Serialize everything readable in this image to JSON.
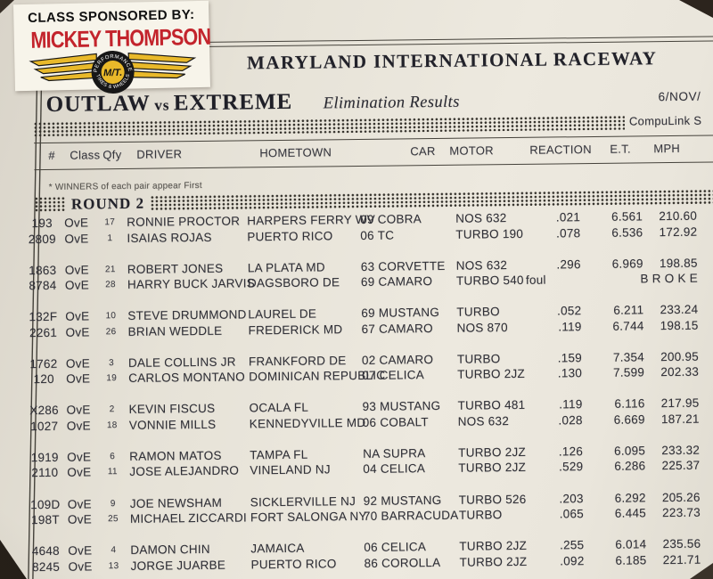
{
  "sticker": {
    "heading": "CLASS SPONSORED BY:",
    "brand": "MICKEY THOMPSON",
    "logo_center": "M/T.",
    "logo_arc_top": "PERFORMANCE",
    "logo_arc_bottom": "TIRES & WHEELS"
  },
  "masthead": {
    "track": "MARYLAND INTERNATIONAL RACEWAY",
    "class_left": "OUTLAW",
    "class_vs": "vs",
    "class_right": "EXTREME",
    "subtitle": "Elimination Results",
    "date": "6/NOV/",
    "timing_system": "CompuLink S"
  },
  "table": {
    "columns": [
      "#",
      "Class",
      "Qfy",
      "DRIVER",
      "HOMETOWN",
      "CAR",
      "MOTOR",
      "REACTION",
      "E.T.",
      "MPH"
    ],
    "winners_note": "* WINNERS of each pair appear First",
    "round_label": "ROUND 2",
    "pairs": [
      [
        {
          "num": "193",
          "cls": "OvE",
          "qty": "17",
          "driver": "RONNIE PROCTOR",
          "hometown": "HARPERS FERRY WV",
          "car": "09 COBRA",
          "motor": "NOS 632",
          "reaction": ".021",
          "et": "6.561",
          "mph": "210.60"
        },
        {
          "num": "2809",
          "cls": "OvE",
          "qty": "1",
          "driver": "ISAIAS ROJAS",
          "hometown": "PUERTO RICO",
          "car": "06 TC",
          "motor": "TURBO 190",
          "reaction": ".078",
          "et": "6.536",
          "mph": "172.92"
        }
      ],
      [
        {
          "num": "1863",
          "cls": "OvE",
          "qty": "21",
          "driver": "ROBERT JONES",
          "hometown": "LA PLATA MD",
          "car": "63 CORVETTE",
          "motor": "NOS 632",
          "reaction": ".296",
          "et": "6.969",
          "mph": "198.85"
        },
        {
          "num": "8784",
          "cls": "OvE",
          "qty": "28",
          "driver": "HARRY BUCK JARVIS",
          "hometown": "DAGSBORO DE",
          "car": "69 CAMARO",
          "motor": "TURBO 540",
          "reaction": "foul",
          "et": "",
          "mph": "B R O K E"
        }
      ],
      [
        {
          "num": "132F",
          "cls": "OvE",
          "qty": "10",
          "driver": "STEVE DRUMMOND",
          "hometown": "LAUREL DE",
          "car": "69 MUSTANG",
          "motor": "TURBO",
          "reaction": ".052",
          "et": "6.211",
          "mph": "233.24"
        },
        {
          "num": "2261",
          "cls": "OvE",
          "qty": "26",
          "driver": "BRIAN WEDDLE",
          "hometown": "FREDERICK MD",
          "car": "67 CAMARO",
          "motor": "NOS 870",
          "reaction": ".119",
          "et": "6.744",
          "mph": "198.15"
        }
      ],
      [
        {
          "num": "1762",
          "cls": "OvE",
          "qty": "3",
          "driver": "DALE COLLINS JR",
          "hometown": "FRANKFORD DE",
          "car": "02 CAMARO",
          "motor": "TURBO",
          "reaction": ".159",
          "et": "7.354",
          "mph": "200.95"
        },
        {
          "num": "120",
          "cls": "OvE",
          "qty": "19",
          "driver": "CARLOS MONTANO",
          "hometown": "DOMINICAN REPUBLIC",
          "car": "07 CELICA",
          "motor": "TURBO 2JZ",
          "reaction": ".130",
          "et": "7.599",
          "mph": "202.33"
        }
      ],
      [
        {
          "num": "X286",
          "cls": "OvE",
          "qty": "2",
          "driver": "KEVIN FISCUS",
          "hometown": "OCALA FL",
          "car": "93 MUSTANG",
          "motor": "TURBO 481",
          "reaction": ".119",
          "et": "6.116",
          "mph": "217.95"
        },
        {
          "num": "1027",
          "cls": "OvE",
          "qty": "18",
          "driver": "VONNIE MILLS",
          "hometown": "KENNEDYVILLE MD",
          "car": "06 COBALT",
          "motor": "NOS 632",
          "reaction": ".028",
          "et": "6.669",
          "mph": "187.21"
        }
      ],
      [
        {
          "num": "1919",
          "cls": "OvE",
          "qty": "6",
          "driver": "RAMON MATOS",
          "hometown": "TAMPA FL",
          "car": "NA SUPRA",
          "motor": "TURBO 2JZ",
          "reaction": ".126",
          "et": "6.095",
          "mph": "233.32"
        },
        {
          "num": "2110",
          "cls": "OvE",
          "qty": "11",
          "driver": "JOSE ALEJANDRO",
          "hometown": "VINELAND NJ",
          "car": "04 CELICA",
          "motor": "TURBO 2JZ",
          "reaction": ".529",
          "et": "6.286",
          "mph": "225.37"
        }
      ],
      [
        {
          "num": "109D",
          "cls": "OvE",
          "qty": "9",
          "driver": "JOE NEWSHAM",
          "hometown": "SICKLERVILLE NJ",
          "car": "92 MUSTANG",
          "motor": "TURBO 526",
          "reaction": ".203",
          "et": "6.292",
          "mph": "205.26"
        },
        {
          "num": "198T",
          "cls": "OvE",
          "qty": "25",
          "driver": "MICHAEL ZICCARDI",
          "hometown": "FORT SALONGA NY",
          "car": "70 BARRACUDA",
          "motor": "TURBO",
          "reaction": ".065",
          "et": "6.445",
          "mph": "223.73"
        }
      ],
      [
        {
          "num": "4648",
          "cls": "OvE",
          "qty": "4",
          "driver": "DAMON CHIN",
          "hometown": "JAMAICA",
          "car": "06 CELICA",
          "motor": "TURBO 2JZ",
          "reaction": ".255",
          "et": "6.014",
          "mph": "235.56"
        },
        {
          "num": "8245",
          "cls": "OvE",
          "qty": "13",
          "driver": "JORGE JUARBE",
          "hometown": "PUERTO RICO",
          "car": "86 COROLLA",
          "motor": "TURBO 2JZ",
          "reaction": ".092",
          "et": "6.185",
          "mph": "221.71"
        }
      ]
    ]
  },
  "colors": {
    "brand_red": "#c3242c",
    "wing_yellow": "#e9b92a",
    "paper": "#e8e4da",
    "ink": "#33333b"
  }
}
